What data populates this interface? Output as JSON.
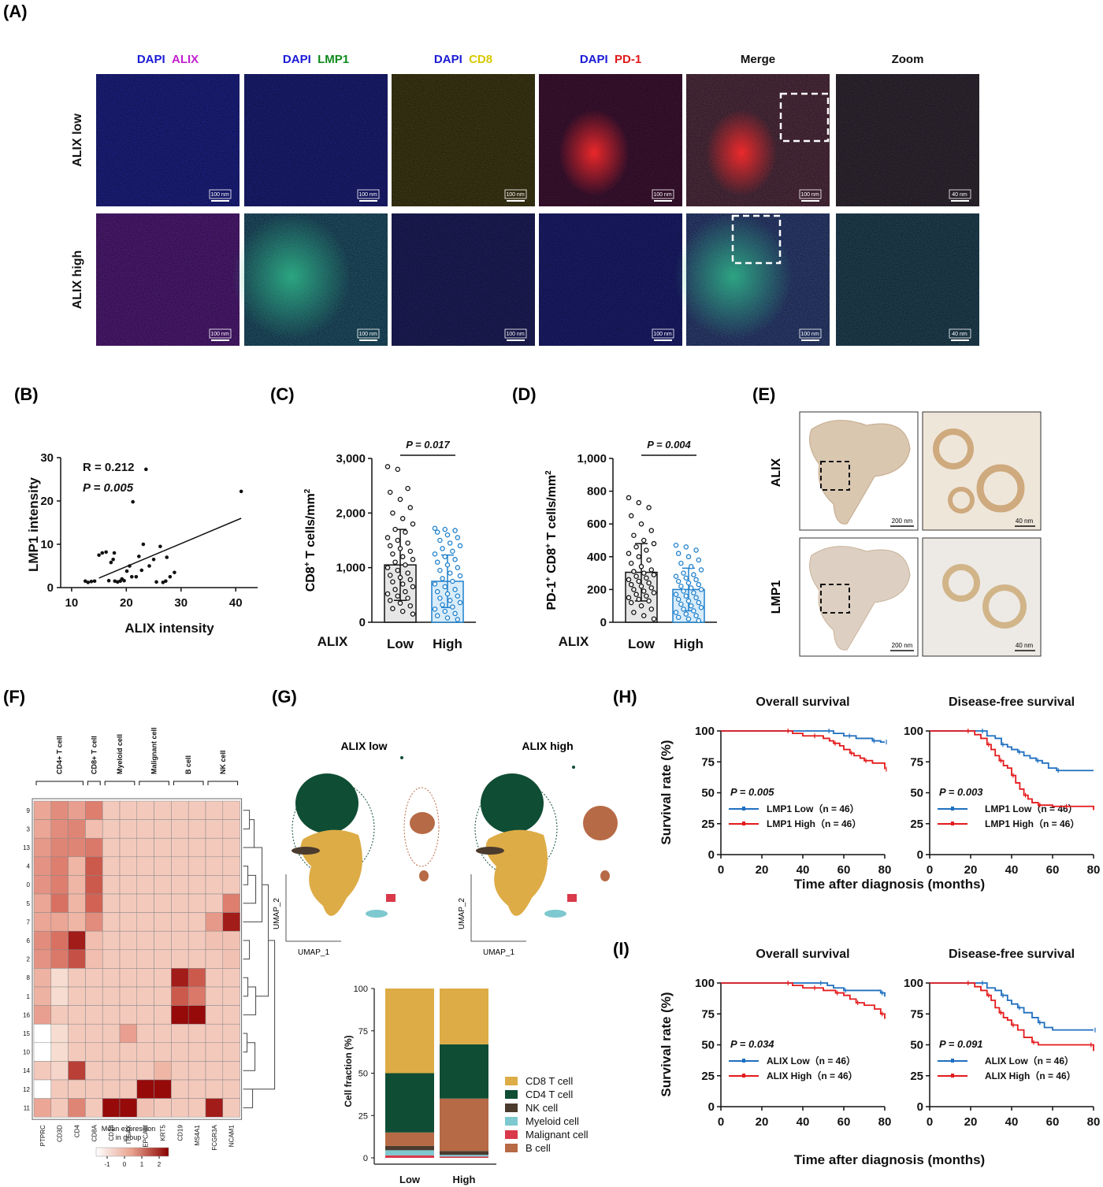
{
  "panels": {
    "A": "(A)",
    "B": "(B)",
    "C": "(C)",
    "D": "(D)",
    "E": "(E)",
    "F": "(F)",
    "G": "(G)",
    "H": "(H)",
    "I": "(I)"
  },
  "panel_a": {
    "columns": [
      {
        "parts": [
          {
            "text": "DAPI",
            "color": "#1a1ad6"
          },
          {
            "text": "ALIX",
            "color": "#c21ed0"
          }
        ]
      },
      {
        "parts": [
          {
            "text": "DAPI",
            "color": "#1a1ad6"
          },
          {
            "text": "LMP1",
            "color": "#0d8a1a"
          }
        ]
      },
      {
        "parts": [
          {
            "text": "DAPI",
            "color": "#1a1ad6"
          },
          {
            "text": "CD8",
            "color": "#d8c800"
          }
        ]
      },
      {
        "parts": [
          {
            "text": "DAPI",
            "color": "#1a1ad6"
          },
          {
            "text": "PD-1",
            "color": "#e01818"
          }
        ]
      },
      {
        "parts": [
          {
            "text": "Merge",
            "color": "#111111"
          }
        ]
      },
      {
        "parts": [
          {
            "text": "Zoom",
            "color": "#111111"
          }
        ]
      }
    ],
    "rows": [
      "ALIX  low",
      "ALIX  high"
    ],
    "scale_bar": "100 nm",
    "zoom_scale_bar": "40 nm"
  },
  "chart_data": [
    {
      "id": "B",
      "type": "scatter",
      "xlabel": "ALIX intensity",
      "ylabel": "LMP1 intensity",
      "xlim": [
        8,
        44
      ],
      "ylim": [
        0,
        30
      ],
      "xticks": [
        10,
        20,
        30,
        40
      ],
      "yticks": [
        0,
        10,
        20,
        30
      ],
      "annotations": [
        "R = 0.212",
        "P = 0.005"
      ],
      "points": [
        [
          12.5,
          1.5
        ],
        [
          13,
          1.2
        ],
        [
          13.6,
          1.4
        ],
        [
          14.2,
          1.5
        ],
        [
          15,
          7.5
        ],
        [
          15.6,
          8
        ],
        [
          16.3,
          8.2
        ],
        [
          16.8,
          1.6
        ],
        [
          17.2,
          5.8
        ],
        [
          17.6,
          6.5
        ],
        [
          17.8,
          8
        ],
        [
          17.9,
          1.5
        ],
        [
          18.4,
          1.3
        ],
        [
          18.9,
          1.5
        ],
        [
          19.2,
          2
        ],
        [
          19.6,
          1.6
        ],
        [
          20.1,
          3.8
        ],
        [
          20.6,
          5
        ],
        [
          21,
          2.5
        ],
        [
          21.2,
          19.8
        ],
        [
          21.8,
          2.5
        ],
        [
          22.3,
          7.2
        ],
        [
          22.8,
          4
        ],
        [
          23.1,
          10
        ],
        [
          23.6,
          27.3
        ],
        [
          24.2,
          5
        ],
        [
          25,
          6.5
        ],
        [
          25.5,
          1.3
        ],
        [
          26.2,
          9.5
        ],
        [
          26.7,
          1.2
        ],
        [
          27.2,
          1.5
        ],
        [
          27.4,
          7
        ],
        [
          28,
          2.5
        ],
        [
          28.8,
          3.5
        ],
        [
          41,
          22.2
        ]
      ],
      "fit": [
        [
          15,
          2.2
        ],
        [
          41,
          16
        ]
      ]
    },
    {
      "id": "C",
      "type": "bar",
      "group_label": "ALIX",
      "categories": [
        "Low",
        "High"
      ],
      "values": [
        1050,
        750
      ],
      "sd": [
        650,
        480
      ],
      "ylabel_main": "CD8",
      "ylabel_sup": "+",
      "ylabel_rest": " T  cells/mm",
      "ylabel_unit_sup": "2",
      "ylim": [
        0,
        3000
      ],
      "yticks": [
        0,
        1000,
        2000,
        3000
      ],
      "ytick_labels": [
        "0",
        "1,000",
        "2,000",
        "3,000"
      ],
      "pvalue": "P = 0.017",
      "low_points": [
        2850,
        2800,
        2450,
        2380,
        2250,
        2100,
        2000,
        1900,
        1800,
        1700,
        1650,
        1550,
        1500,
        1450,
        1400,
        1350,
        1300,
        1250,
        1200,
        1150,
        1100,
        1050,
        1000,
        950,
        900,
        860,
        820,
        780,
        740,
        700,
        650,
        600,
        560,
        520,
        480,
        440,
        400,
        350,
        300,
        250,
        200,
        150
      ],
      "high_points": [
        1720,
        1700,
        1680,
        1650,
        1600,
        1550,
        1500,
        1450,
        1400,
        1350,
        1300,
        1250,
        1200,
        1150,
        1100,
        1050,
        1000,
        950,
        900,
        850,
        800,
        750,
        700,
        650,
        600,
        560,
        520,
        480,
        440,
        400,
        360,
        320,
        280,
        240,
        200,
        160,
        120,
        80,
        50
      ]
    },
    {
      "id": "D",
      "type": "bar",
      "group_label": "ALIX",
      "categories": [
        "Low",
        "High"
      ],
      "values": [
        305,
        200
      ],
      "sd": [
        175,
        130
      ],
      "ylabel_main": "PD-1",
      "ylabel_sup": "+",
      "ylabel_rest": " CD8",
      "ylabel_sup2": "+",
      "ylabel_rest2": " T  cells/mm",
      "ylabel_unit_sup": "2",
      "ylim": [
        0,
        1000
      ],
      "yticks": [
        0,
        200,
        400,
        600,
        800,
        1000
      ],
      "ytick_labels": [
        "0",
        "200",
        "400",
        "600",
        "800",
        "1,000"
      ],
      "pvalue": "P = 0.004",
      "low_points": [
        760,
        730,
        700,
        650,
        600,
        560,
        530,
        500,
        480,
        460,
        440,
        420,
        400,
        380,
        360,
        340,
        320,
        310,
        300,
        290,
        280,
        270,
        260,
        250,
        240,
        230,
        220,
        210,
        200,
        190,
        180,
        170,
        160,
        150,
        140,
        130,
        120,
        100,
        80,
        60,
        40,
        20
      ],
      "high_points": [
        470,
        460,
        440,
        420,
        400,
        380,
        360,
        340,
        320,
        300,
        290,
        280,
        270,
        260,
        250,
        240,
        230,
        220,
        210,
        200,
        190,
        180,
        170,
        160,
        150,
        140,
        130,
        120,
        110,
        100,
        90,
        80,
        70,
        60,
        50,
        40,
        30,
        20,
        10
      ]
    },
    {
      "id": "F",
      "type": "heatmap",
      "group_labels": [
        "CD4+ T cell",
        "CD8+ T cell",
        "Myeloid cell",
        "Malignant cell",
        "B cell",
        "NK cell"
      ],
      "genes": [
        "PTPRC",
        "CD3D",
        "CD4",
        "CD8A",
        "CD14",
        "ITGAX",
        "EPCAM",
        "KRT5",
        "CD19",
        "MS4A1",
        "FCGR3A",
        "NCAM1"
      ],
      "clusters": [
        "9",
        "3",
        "13",
        "4",
        "0",
        "5",
        "7",
        "6",
        "2",
        "8",
        "1",
        "16",
        "15",
        "10",
        "14",
        "12",
        "11"
      ],
      "values": [
        [
          0.8,
          1.2,
          0.9,
          1.4,
          0,
          0,
          0,
          0,
          0,
          0,
          0,
          0
        ],
        [
          0.8,
          1.2,
          1.3,
          0.3,
          0,
          0,
          0,
          0,
          0,
          0,
          0,
          0
        ],
        [
          1.0,
          1.3,
          1.3,
          1.5,
          0,
          0,
          0,
          0,
          0,
          0,
          0,
          0
        ],
        [
          1.1,
          1.4,
          0.5,
          1.9,
          0,
          0,
          0,
          0,
          0,
          0,
          0,
          0
        ],
        [
          1.1,
          1.4,
          0.5,
          1.9,
          0,
          0,
          0,
          0,
          0,
          0,
          0,
          0
        ],
        [
          0.8,
          1.6,
          0.5,
          1.8,
          0,
          0,
          0,
          0,
          0,
          0,
          0,
          1.4
        ],
        [
          0.8,
          0.8,
          0.5,
          1.2,
          0,
          0,
          0,
          0,
          0,
          0,
          1.0,
          2.6
        ],
        [
          1.2,
          1.6,
          2.6,
          0.3,
          0,
          0,
          0,
          0,
          0,
          0,
          0.2,
          0.2
        ],
        [
          1.1,
          1.5,
          2.0,
          0.3,
          0,
          0,
          0,
          0,
          0,
          0,
          0,
          0.2
        ],
        [
          0.6,
          -0.5,
          0,
          0,
          0,
          0,
          0,
          0,
          2.6,
          1.9,
          0,
          0
        ],
        [
          0.6,
          -0.5,
          0,
          0,
          0,
          0,
          0,
          0,
          1.9,
          1.5,
          0,
          0
        ],
        [
          0.9,
          0,
          0,
          0,
          0,
          0,
          0,
          0,
          2.8,
          2.8,
          0,
          0
        ],
        [
          -1.5,
          -0.5,
          0,
          0,
          0,
          0.9,
          0,
          0,
          0,
          0,
          0,
          0
        ],
        [
          -1.5,
          -0.5,
          0,
          0,
          0,
          0,
          0,
          0,
          0,
          0,
          0,
          0
        ],
        [
          0,
          -0.3,
          2.2,
          0,
          0,
          0,
          0,
          0.5,
          0,
          0,
          0,
          0
        ],
        [
          -1.5,
          0,
          0,
          0,
          0,
          0,
          2.8,
          2.8,
          0,
          0,
          0,
          0
        ],
        [
          0.8,
          0,
          1.3,
          0,
          2.8,
          2.8,
          0.2,
          0,
          0,
          0,
          2.6,
          0
        ]
      ],
      "colorbar_title": "Mean expression\nin group",
      "colorbar_ticks": [
        "-1",
        "0",
        "1",
        "2"
      ]
    },
    {
      "id": "G",
      "type": "bar",
      "stacked": true,
      "categories": [
        "Low",
        "High"
      ],
      "ylabel": "Cell fraction (%)",
      "ylim": [
        0,
        100
      ],
      "yticks": [
        0,
        25,
        50,
        75,
        100
      ],
      "series": [
        {
          "name": "Malignant cell",
          "color": "#d9394a",
          "values": [
            1.5,
            0.8
          ]
        },
        {
          "name": "Myeloid cell",
          "color": "#7ec8cf",
          "values": [
            3,
            1
          ]
        },
        {
          "name": "NK cell",
          "color": "#4b3b2e",
          "values": [
            2.5,
            2.2
          ]
        },
        {
          "name": "B cell",
          "color": "#b66a45",
          "values": [
            8,
            31
          ]
        },
        {
          "name": "CD4 T cell",
          "color": "#0f4d35",
          "values": [
            35,
            32
          ]
        },
        {
          "name": "CD8 T cell",
          "color": "#ddac47",
          "values": [
            50,
            33
          ]
        }
      ],
      "legend_order": [
        "CD8 T cell",
        "CD4 T cell",
        "NK cell",
        "Myeloid cell",
        "Malignant cell",
        "B cell"
      ]
    },
    {
      "id": "H-OS",
      "type": "line",
      "title": "Overall survival",
      "xlim": [
        0,
        80
      ],
      "ylim": [
        0,
        100
      ],
      "xticks": [
        0,
        20,
        40,
        60,
        80
      ],
      "yticks": [
        0,
        25,
        50,
        75,
        100
      ],
      "pvalue": "P = 0.005",
      "series": [
        {
          "name": "LMP1 Low（n = 46）",
          "color": "#1f6fc0",
          "x": [
            0,
            52,
            55,
            60,
            62,
            66,
            70,
            74,
            77,
            78,
            80
          ],
          "y": [
            100,
            100,
            98,
            96,
            96,
            94,
            94,
            92,
            92,
            91,
            91
          ]
        },
        {
          "name": "LMP1 High（n = 46）",
          "color": "#e41a1c",
          "x": [
            0,
            32,
            35,
            40,
            45,
            50,
            53,
            55,
            58,
            60,
            63,
            65,
            68,
            70,
            74,
            78,
            80
          ],
          "y": [
            100,
            100,
            98,
            96,
            96,
            94,
            92,
            90,
            88,
            85,
            82,
            80,
            78,
            76,
            74,
            74,
            69
          ]
        }
      ]
    },
    {
      "id": "H-DFS",
      "type": "line",
      "title": "Disease-free survival",
      "xlim": [
        0,
        80
      ],
      "ylim": [
        0,
        100
      ],
      "xticks": [
        0,
        20,
        40,
        60,
        80
      ],
      "yticks": [
        0,
        25,
        50,
        75,
        100
      ],
      "pvalue": "P = 0.003",
      "series": [
        {
          "name": "LMP1 Low（n = 46）",
          "color": "#1f6fc0",
          "x": [
            0,
            25,
            28,
            32,
            35,
            38,
            40,
            43,
            46,
            49,
            52,
            55,
            58,
            62,
            65,
            80
          ],
          "y": [
            100,
            100,
            96,
            94,
            89,
            87,
            85,
            83,
            80,
            78,
            76,
            74,
            70,
            68,
            68,
            68
          ]
        },
        {
          "name": "LMP1 High（n = 46）",
          "color": "#e41a1c",
          "x": [
            0,
            18,
            22,
            25,
            28,
            30,
            32,
            34,
            36,
            38,
            40,
            42,
            44,
            46,
            48,
            50,
            53,
            56,
            60,
            66,
            80
          ],
          "y": [
            100,
            100,
            97,
            94,
            89,
            85,
            80,
            76,
            72,
            70,
            64,
            58,
            53,
            48,
            45,
            42,
            40,
            40,
            39,
            39,
            36
          ]
        }
      ]
    },
    {
      "id": "I-OS",
      "type": "line",
      "title": "Overall survival",
      "xlim": [
        0,
        80
      ],
      "ylim": [
        0,
        100
      ],
      "xticks": [
        0,
        20,
        40,
        60,
        80
      ],
      "yticks": [
        0,
        25,
        50,
        75,
        100
      ],
      "pvalue": "P = 0.034",
      "series": [
        {
          "name": "ALIX Low（n = 46）",
          "color": "#1f6fc0",
          "x": [
            0,
            48,
            52,
            55,
            60,
            66,
            70,
            78,
            80
          ],
          "y": [
            100,
            100,
            98,
            96,
            94,
            94,
            94,
            92,
            89
          ]
        },
        {
          "name": "ALIX High（n = 46）",
          "color": "#e41a1c",
          "x": [
            0,
            32,
            35,
            40,
            45,
            50,
            53,
            56,
            60,
            63,
            66,
            70,
            75,
            78,
            80
          ],
          "y": [
            100,
            100,
            98,
            96,
            96,
            94,
            94,
            92,
            90,
            87,
            84,
            82,
            79,
            75,
            71
          ]
        }
      ]
    },
    {
      "id": "I-DFS",
      "type": "line",
      "title": "Disease-free survival",
      "xlim": [
        0,
        80
      ],
      "ylim": [
        0,
        100
      ],
      "xticks": [
        0,
        20,
        40,
        60,
        80
      ],
      "yticks": [
        0,
        25,
        50,
        75,
        100
      ],
      "pvalue": "P = 0.091",
      "series": [
        {
          "name": "ALIX Low（n = 46）",
          "color": "#1f6fc0",
          "x": [
            0,
            25,
            28,
            32,
            35,
            38,
            40,
            43,
            46,
            50,
            53,
            56,
            60,
            80
          ],
          "y": [
            100,
            100,
            96,
            94,
            90,
            86,
            83,
            80,
            76,
            72,
            68,
            64,
            62,
            62
          ]
        },
        {
          "name": "ALIX High（n = 46）",
          "color": "#e41a1c",
          "x": [
            0,
            18,
            22,
            25,
            28,
            30,
            32,
            34,
            36,
            38,
            40,
            43,
            46,
            50,
            53,
            60,
            78,
            80
          ],
          "y": [
            100,
            100,
            97,
            94,
            90,
            86,
            80,
            76,
            72,
            70,
            66,
            62,
            56,
            52,
            50,
            50,
            50,
            45
          ]
        }
      ]
    }
  ],
  "panel_e": {
    "rows": [
      "ALIX",
      "LMP1"
    ],
    "scale_large": "200 nm",
    "scale_small": "40 nm"
  },
  "panel_g": {
    "umap_titles": [
      "ALIX low",
      "ALIX high"
    ],
    "umap_x": "UMAP_1",
    "umap_y": "UMAP_2"
  },
  "panel_hi": {
    "xlabel": "Time after diagnosis (months)",
    "ylabel": "Survival rate (%)"
  }
}
